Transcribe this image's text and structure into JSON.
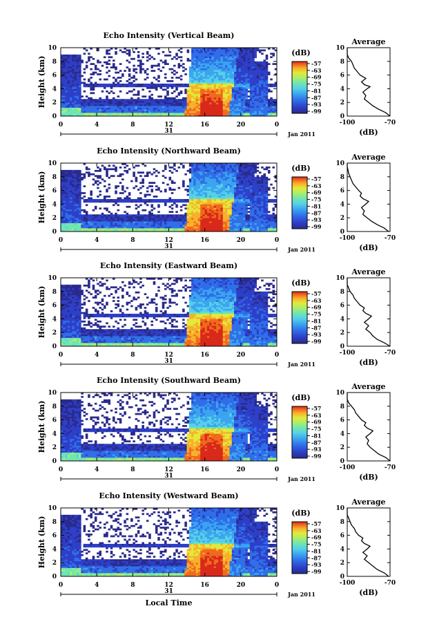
{
  "chart_data": [
    {
      "type": "heatmap",
      "title": "Echo Intensity (Vertical Beam)",
      "ylabel": "Height (km)",
      "y_ticks": [
        "0",
        "2",
        "4",
        "6",
        "8",
        "10"
      ],
      "x_ticks": [
        "0",
        "4",
        "8",
        "12",
        "16",
        "20",
        "0"
      ],
      "date_label": "31",
      "month_label": "Jan 2011",
      "xlabel": "",
      "colorbar": {
        "unit": "(dB)",
        "ticks": [
          "-57",
          "-63",
          "-69",
          "-75",
          "-81",
          "-87",
          "-93",
          "-99"
        ]
      },
      "ylim": [
        0,
        10
      ],
      "xlim": [
        0,
        24
      ],
      "average": {
        "title": "Average",
        "x_ticks": [
          "-100",
          "-70"
        ],
        "xlabel": "(dB)",
        "y_ticks": [
          "0",
          "2",
          "4",
          "6",
          "8",
          "10"
        ],
        "profile": [
          [
            -70,
            0
          ],
          [
            -73,
            0.5
          ],
          [
            -78,
            1
          ],
          [
            -82,
            1.5
          ],
          [
            -85,
            2
          ],
          [
            -88,
            2.5
          ],
          [
            -87,
            3
          ],
          [
            -89,
            3.5
          ],
          [
            -86,
            4
          ],
          [
            -84,
            4.3
          ],
          [
            -88,
            4.6
          ],
          [
            -90,
            5
          ],
          [
            -87,
            5.5
          ],
          [
            -91,
            6
          ],
          [
            -93,
            6.5
          ],
          [
            -95,
            7
          ],
          [
            -96,
            7.5
          ],
          [
            -97,
            8
          ],
          [
            -99,
            8.5
          ],
          [
            -100,
            9
          ],
          [
            -100,
            10
          ]
        ]
      }
    },
    {
      "type": "heatmap",
      "title": "Echo Intensity (Northward Beam)",
      "ylabel": "Height (km)",
      "y_ticks": [
        "0",
        "2",
        "4",
        "6",
        "8",
        "10"
      ],
      "x_ticks": [
        "0",
        "4",
        "8",
        "12",
        "16",
        "20",
        "0"
      ],
      "date_label": "31",
      "month_label": "Jan 2011",
      "xlabel": "",
      "colorbar": {
        "unit": "(dB)",
        "ticks": [
          "-57",
          "-63",
          "-69",
          "-75",
          "-81",
          "-87",
          "-93",
          "-99"
        ]
      },
      "ylim": [
        0,
        10
      ],
      "xlim": [
        0,
        24
      ],
      "average": {
        "title": "Average",
        "x_ticks": [
          "-100",
          "-70"
        ],
        "xlabel": "(dB)",
        "y_ticks": [
          "0",
          "2",
          "4",
          "6",
          "8",
          "10"
        ],
        "profile": [
          [
            -71,
            0
          ],
          [
            -74,
            0.5
          ],
          [
            -79,
            1
          ],
          [
            -83,
            1.5
          ],
          [
            -86,
            2
          ],
          [
            -89,
            2.5
          ],
          [
            -88,
            3
          ],
          [
            -90,
            3.5
          ],
          [
            -87,
            4
          ],
          [
            -85,
            4.4
          ],
          [
            -89,
            4.8
          ],
          [
            -91,
            5.2
          ],
          [
            -90,
            5.6
          ],
          [
            -92,
            6
          ],
          [
            -94,
            6.5
          ],
          [
            -96,
            7
          ],
          [
            -97,
            7.5
          ],
          [
            -98,
            8
          ],
          [
            -99,
            8.5
          ],
          [
            -100,
            9.5
          ],
          [
            -100,
            10
          ]
        ]
      }
    },
    {
      "type": "heatmap",
      "title": "Echo Intensity (Eastward Beam)",
      "ylabel": "Height (km)",
      "y_ticks": [
        "0",
        "2",
        "4",
        "6",
        "8",
        "10"
      ],
      "x_ticks": [
        "0",
        "4",
        "8",
        "12",
        "16",
        "20",
        "0"
      ],
      "date_label": "31",
      "month_label": "Jan 2011",
      "xlabel": "",
      "colorbar": {
        "unit": "(dB)",
        "ticks": [
          "-57",
          "-63",
          "-69",
          "-75",
          "-81",
          "-87",
          "-93",
          "-99"
        ]
      },
      "ylim": [
        0,
        10
      ],
      "xlim": [
        0,
        24
      ],
      "average": {
        "title": "Average",
        "x_ticks": [
          "-100",
          "-70"
        ],
        "xlabel": "(dB)",
        "y_ticks": [
          "0",
          "2",
          "4",
          "6",
          "8",
          "10"
        ],
        "profile": [
          [
            -70,
            0
          ],
          [
            -74,
            0.5
          ],
          [
            -79,
            1
          ],
          [
            -82,
            1.5
          ],
          [
            -84,
            2
          ],
          [
            -87,
            2.5
          ],
          [
            -85,
            3
          ],
          [
            -88,
            3.5
          ],
          [
            -85,
            4
          ],
          [
            -83,
            4.4
          ],
          [
            -87,
            4.8
          ],
          [
            -89,
            5.2
          ],
          [
            -88,
            5.6
          ],
          [
            -91,
            6
          ],
          [
            -93,
            6.5
          ],
          [
            -95,
            7
          ],
          [
            -96,
            7.5
          ],
          [
            -98,
            8
          ],
          [
            -99,
            8.5
          ],
          [
            -100,
            9
          ],
          [
            -100,
            10
          ]
        ]
      }
    },
    {
      "type": "heatmap",
      "title": "Echo Intensity (Southward Beam)",
      "ylabel": "Height (km)",
      "y_ticks": [
        "0",
        "2",
        "4",
        "6",
        "8",
        "10"
      ],
      "x_ticks": [
        "0",
        "4",
        "8",
        "12",
        "16",
        "20",
        "0"
      ],
      "date_label": "31",
      "month_label": "Jan 2011",
      "xlabel": "",
      "colorbar": {
        "unit": "(dB)",
        "ticks": [
          "-57",
          "-63",
          "-69",
          "-75",
          "-81",
          "-87",
          "-93",
          "-99"
        ]
      },
      "ylim": [
        0,
        10
      ],
      "xlim": [
        0,
        24
      ],
      "average": {
        "title": "Average",
        "x_ticks": [
          "-100",
          "-70"
        ],
        "xlabel": "(dB)",
        "y_ticks": [
          "0",
          "2",
          "4",
          "6",
          "8",
          "10"
        ],
        "profile": [
          [
            -70,
            0
          ],
          [
            -73,
            0.5
          ],
          [
            -78,
            1
          ],
          [
            -81,
            1.5
          ],
          [
            -84,
            2
          ],
          [
            -86,
            2.5
          ],
          [
            -85,
            3
          ],
          [
            -87,
            3.5
          ],
          [
            -84,
            4
          ],
          [
            -82,
            4.4
          ],
          [
            -86,
            4.8
          ],
          [
            -88,
            5.2
          ],
          [
            -87,
            5.6
          ],
          [
            -90,
            6
          ],
          [
            -92,
            6.5
          ],
          [
            -94,
            7
          ],
          [
            -95,
            7.5
          ],
          [
            -97,
            8
          ],
          [
            -99,
            8.5
          ],
          [
            -100,
            9
          ],
          [
            -100,
            10
          ]
        ]
      }
    },
    {
      "type": "heatmap",
      "title": "Echo Intensity (Westward Beam)",
      "ylabel": "Height (km)",
      "y_ticks": [
        "0",
        "2",
        "4",
        "6",
        "8",
        "10"
      ],
      "x_ticks": [
        "0",
        "4",
        "8",
        "12",
        "16",
        "20",
        "0"
      ],
      "date_label": "31",
      "month_label": "Jan 2011",
      "xlabel": "Local Time",
      "colorbar": {
        "unit": "(dB)",
        "ticks": [
          "-57",
          "-63",
          "-69",
          "-75",
          "-81",
          "-87",
          "-93",
          "-99"
        ]
      },
      "ylim": [
        0,
        10
      ],
      "xlim": [
        0,
        24
      ],
      "average": {
        "title": "Average",
        "x_ticks": [
          "-100",
          "-70"
        ],
        "xlabel": "(dB)",
        "y_ticks": [
          "0",
          "2",
          "4",
          "6",
          "8",
          "10"
        ],
        "profile": [
          [
            -71,
            0
          ],
          [
            -74,
            0.5
          ],
          [
            -79,
            1
          ],
          [
            -82,
            1.5
          ],
          [
            -85,
            2
          ],
          [
            -88,
            2.5
          ],
          [
            -86,
            3
          ],
          [
            -89,
            3.5
          ],
          [
            -86,
            4
          ],
          [
            -84,
            4.4
          ],
          [
            -88,
            4.8
          ],
          [
            -90,
            5.2
          ],
          [
            -89,
            5.6
          ],
          [
            -92,
            6
          ],
          [
            -94,
            6.5
          ],
          [
            -95,
            7
          ],
          [
            -97,
            7.5
          ],
          [
            -98,
            8
          ],
          [
            -99,
            8.5
          ],
          [
            -100,
            9
          ],
          [
            -100,
            10
          ]
        ]
      }
    }
  ],
  "colors": {
    "colormap": [
      "#2a2a8c",
      "#2d3fc8",
      "#2f6ee8",
      "#3aa4f0",
      "#56d0e8",
      "#6ee6b0",
      "#a8ee6c",
      "#e2ea3a",
      "#f8b02a",
      "#f06a1e",
      "#d8281a"
    ]
  }
}
